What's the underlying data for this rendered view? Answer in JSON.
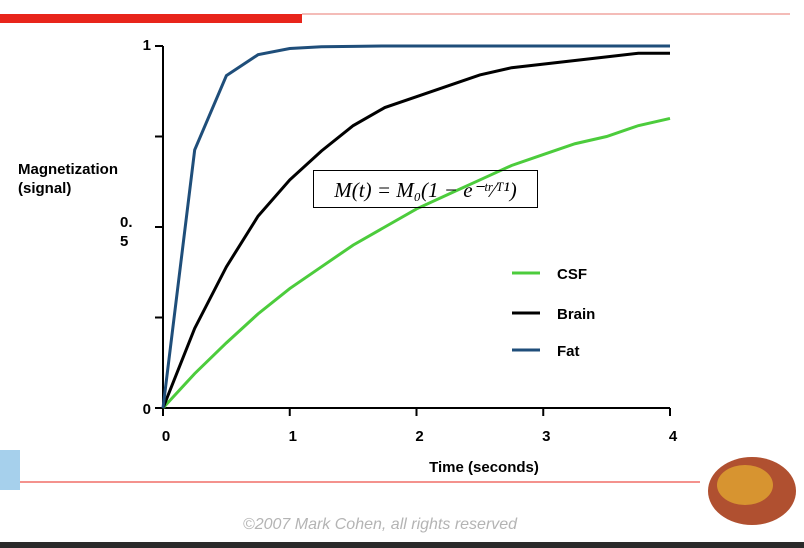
{
  "chart_data": {
    "type": "line",
    "y_label": "Magnetization (signal)",
    "x_label": "Time (seconds)",
    "annotation": "M(t) = M₀(1 − e⁻ᵗʳ⁄ᵀ¹)",
    "x": [
      0,
      0.25,
      0.5,
      0.75,
      1,
      1.25,
      1.5,
      1.75,
      2,
      2.25,
      2.5,
      2.75,
      3,
      3.25,
      3.5,
      3.75,
      4
    ],
    "series": [
      {
        "name": "CSF",
        "color": "#4ccc3c",
        "values": [
          0,
          0.095,
          0.18,
          0.26,
          0.33,
          0.39,
          0.45,
          0.5,
          0.55,
          0.59,
          0.63,
          0.67,
          0.7,
          0.73,
          0.75,
          0.78,
          0.8
        ]
      },
      {
        "name": "Brain",
        "color": "#000000",
        "values": [
          0,
          0.22,
          0.39,
          0.53,
          0.63,
          0.71,
          0.78,
          0.83,
          0.86,
          0.89,
          0.92,
          0.94,
          0.95,
          0.96,
          0.97,
          0.98,
          0.98
        ]
      },
      {
        "name": "Fat",
        "color": "#1f4e7a",
        "values": [
          0,
          0.713,
          0.918,
          0.976,
          0.993,
          0.998,
          0.999,
          1,
          1,
          1,
          1,
          1,
          1,
          1,
          1,
          1,
          1
        ]
      }
    ],
    "xlim": [
      0,
      4
    ],
    "xticks": [
      0,
      1,
      2,
      3,
      4
    ],
    "ylim": [
      0,
      1
    ],
    "yticks": [
      0,
      0.5,
      1
    ],
    "minor_yticks": [
      0.25,
      0.75
    ]
  },
  "footer": "©2007 Mark Cohen, all rights reserved"
}
